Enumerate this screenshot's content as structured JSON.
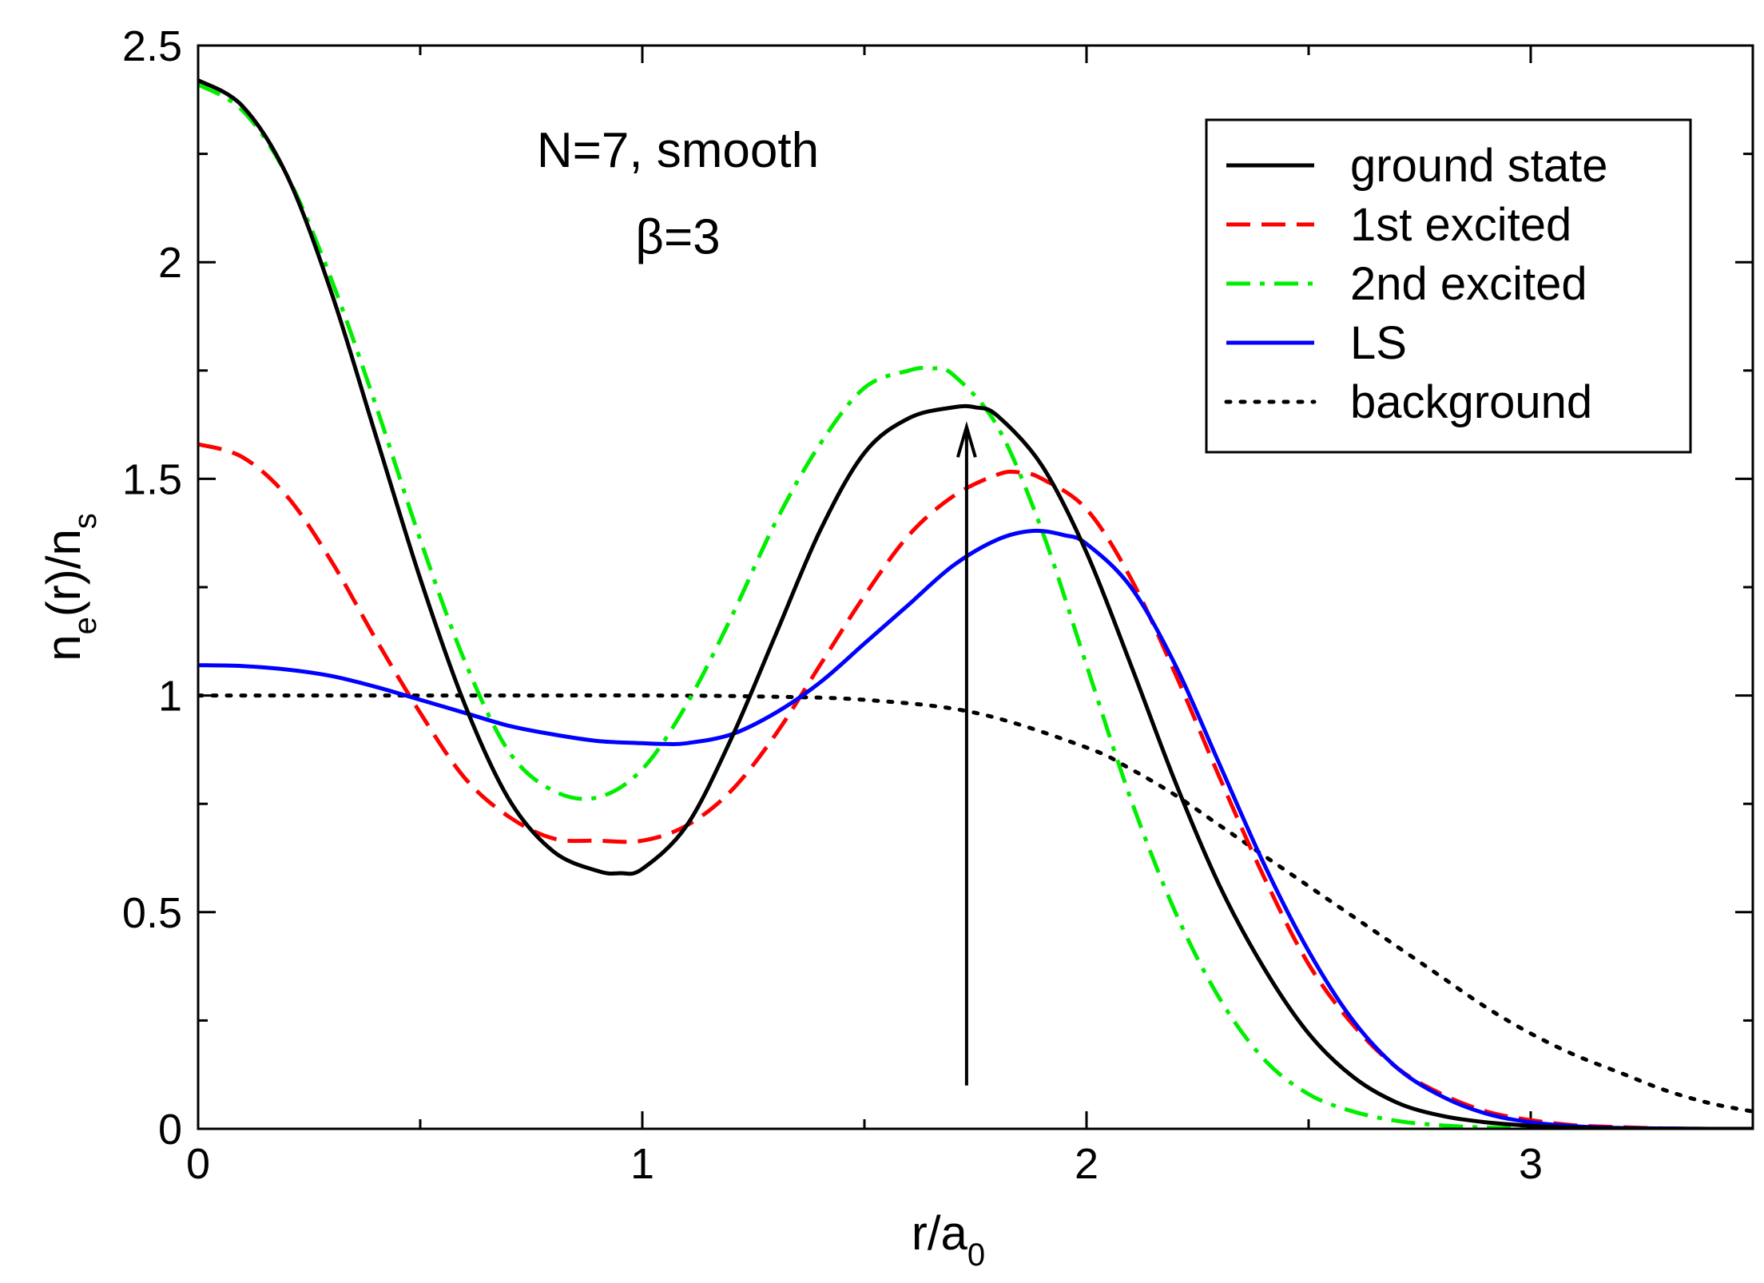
{
  "chart_data": {
    "type": "line",
    "xlabel": {
      "main": "r/a",
      "sub": "0"
    },
    "ylabel": {
      "p1": "n",
      "s1": "e",
      "p2": "(r)/n",
      "s2": "s"
    },
    "xlim": [
      0,
      3.5
    ],
    "ylim": [
      0,
      2.5
    ],
    "x_ticks": [
      0,
      1,
      2,
      3
    ],
    "x_tick_labels": [
      "0",
      "1",
      "2",
      "3"
    ],
    "x_minor_step": 0.5,
    "y_ticks": [
      0,
      0.5,
      1,
      1.5,
      2,
      2.5
    ],
    "y_tick_labels": [
      "0",
      "0.5",
      "1",
      "1.5",
      "2",
      "2.5"
    ],
    "y_minor_step": 0.25,
    "grid": false,
    "legend_position": "top-right",
    "annotations": [
      {
        "text": "N=7, smooth",
        "x": 1.08,
        "y": 2.22
      },
      {
        "text": "β=3",
        "x": 1.08,
        "y": 2.02
      }
    ],
    "arrow": {
      "x": 1.73,
      "y_start": 0.1,
      "y_end": 1.62
    },
    "series": [
      {
        "name": "ground state",
        "color": "#000000",
        "style": "solid",
        "x": [
          0,
          0.1,
          0.2,
          0.3,
          0.4,
          0.5,
          0.6,
          0.7,
          0.8,
          0.9,
          0.95,
          1.0,
          1.1,
          1.2,
          1.3,
          1.4,
          1.5,
          1.6,
          1.7,
          1.75,
          1.8,
          1.9,
          2.0,
          2.1,
          2.2,
          2.3,
          2.4,
          2.5,
          2.6,
          2.7,
          2.8,
          2.9,
          3.0,
          3.1,
          3.2,
          3.3,
          3.4,
          3.5
        ],
        "y": [
          2.42,
          2.36,
          2.2,
          1.93,
          1.6,
          1.27,
          0.98,
          0.76,
          0.64,
          0.595,
          0.59,
          0.6,
          0.7,
          0.9,
          1.14,
          1.38,
          1.56,
          1.64,
          1.665,
          1.665,
          1.645,
          1.53,
          1.33,
          1.07,
          0.8,
          0.56,
          0.37,
          0.22,
          0.12,
          0.06,
          0.03,
          0.015,
          0.007,
          0.003,
          0.001,
          0.0,
          0.0,
          0.0
        ]
      },
      {
        "name": "1st excited",
        "color": "#ff0000",
        "style": "dashed",
        "x": [
          0,
          0.1,
          0.2,
          0.3,
          0.4,
          0.5,
          0.6,
          0.7,
          0.8,
          0.9,
          1.0,
          1.1,
          1.2,
          1.3,
          1.4,
          1.5,
          1.6,
          1.7,
          1.8,
          1.85,
          1.9,
          2.0,
          2.1,
          2.2,
          2.3,
          2.4,
          2.5,
          2.6,
          2.7,
          2.8,
          2.9,
          3.0,
          3.1,
          3.2,
          3.3,
          3.4,
          3.5
        ],
        "y": [
          1.58,
          1.55,
          1.46,
          1.31,
          1.13,
          0.96,
          0.81,
          0.72,
          0.67,
          0.665,
          0.665,
          0.7,
          0.78,
          0.91,
          1.07,
          1.23,
          1.37,
          1.46,
          1.51,
          1.515,
          1.5,
          1.43,
          1.27,
          1.05,
          0.81,
          0.58,
          0.38,
          0.24,
          0.14,
          0.08,
          0.04,
          0.02,
          0.008,
          0.004,
          0.001,
          0.0,
          0.0
        ]
      },
      {
        "name": "2nd excited",
        "color": "#00ee00",
        "style": "dashdot",
        "x": [
          0,
          0.1,
          0.2,
          0.3,
          0.4,
          0.5,
          0.6,
          0.7,
          0.8,
          0.9,
          1.0,
          1.1,
          1.2,
          1.3,
          1.4,
          1.5,
          1.6,
          1.65,
          1.7,
          1.8,
          1.9,
          2.0,
          2.1,
          2.2,
          2.3,
          2.4,
          2.5,
          2.6,
          2.7,
          2.8,
          2.9,
          3.0,
          3.1,
          3.2,
          3.3,
          3.4,
          3.5
        ],
        "y": [
          2.41,
          2.35,
          2.2,
          1.96,
          1.67,
          1.36,
          1.08,
          0.87,
          0.78,
          0.765,
          0.83,
          0.98,
          1.18,
          1.4,
          1.58,
          1.71,
          1.75,
          1.755,
          1.74,
          1.62,
          1.38,
          1.07,
          0.76,
          0.5,
          0.3,
          0.16,
          0.08,
          0.04,
          0.018,
          0.008,
          0.003,
          0.001,
          0.0,
          0.0,
          0.0,
          0.0,
          0.0
        ]
      },
      {
        "name": "LS",
        "color": "#0000ff",
        "style": "solid",
        "x": [
          0,
          0.1,
          0.2,
          0.3,
          0.4,
          0.5,
          0.6,
          0.7,
          0.8,
          0.9,
          1.0,
          1.05,
          1.1,
          1.2,
          1.3,
          1.4,
          1.5,
          1.6,
          1.7,
          1.8,
          1.88,
          1.95,
          2.0,
          2.1,
          2.2,
          2.3,
          2.4,
          2.5,
          2.6,
          2.7,
          2.8,
          2.9,
          3.0,
          3.1,
          3.2,
          3.3,
          3.4,
          3.5
        ],
        "y": [
          1.07,
          1.068,
          1.06,
          1.045,
          1.02,
          0.99,
          0.96,
          0.93,
          0.91,
          0.895,
          0.89,
          0.888,
          0.89,
          0.91,
          0.96,
          1.03,
          1.12,
          1.21,
          1.3,
          1.36,
          1.38,
          1.37,
          1.35,
          1.25,
          1.07,
          0.84,
          0.61,
          0.41,
          0.25,
          0.14,
          0.075,
          0.035,
          0.015,
          0.006,
          0.002,
          0.001,
          0.0,
          0.0
        ]
      },
      {
        "name": "background",
        "color": "#000000",
        "style": "dotted",
        "x": [
          0,
          0.25,
          0.5,
          0.75,
          1.0,
          1.25,
          1.5,
          1.75,
          2.0,
          2.1,
          2.2,
          2.3,
          2.4,
          2.5,
          2.6,
          2.7,
          2.8,
          2.9,
          3.0,
          3.1,
          3.2,
          3.3,
          3.4,
          3.5
        ],
        "y": [
          1.0,
          1.0,
          1.0,
          1.0,
          1.0,
          0.998,
          0.99,
          0.96,
          0.88,
          0.83,
          0.77,
          0.7,
          0.63,
          0.56,
          0.49,
          0.42,
          0.35,
          0.28,
          0.22,
          0.17,
          0.13,
          0.09,
          0.06,
          0.04
        ]
      }
    ]
  }
}
